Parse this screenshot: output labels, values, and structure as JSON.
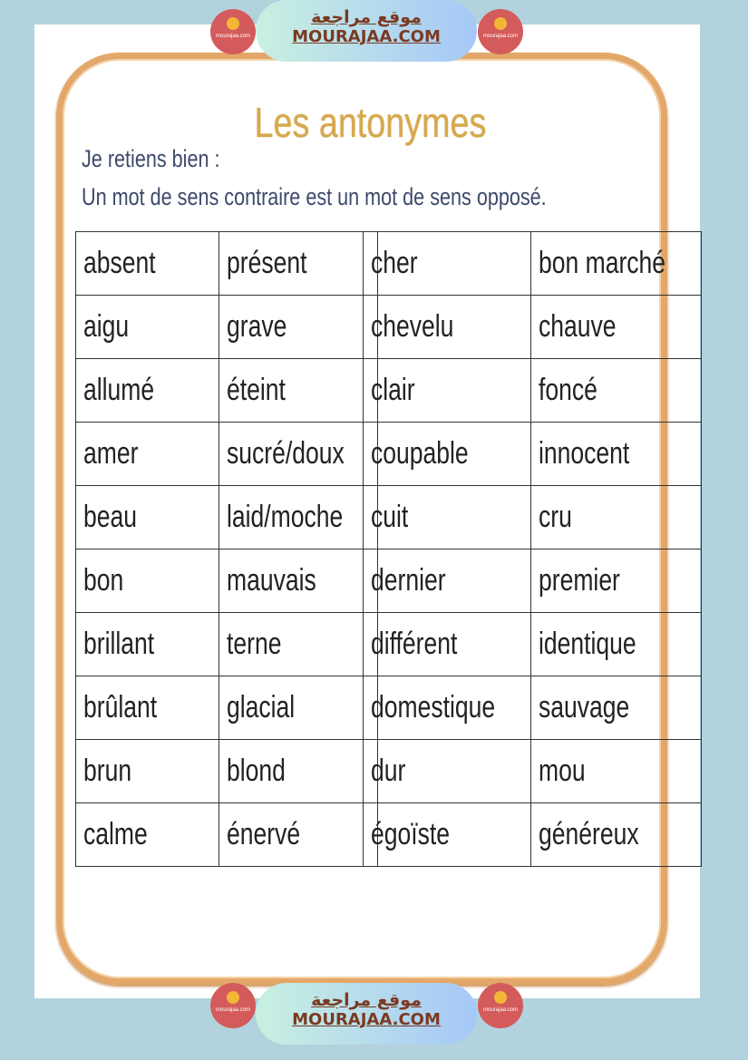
{
  "banner": {
    "arabic": "موقع مراجعة",
    "site": "MOURAJAA.COM",
    "logo_text": "mourajaa.com"
  },
  "title": "Les antonymes",
  "subtitle1": "Je retiens bien :",
  "subtitle2": "Un mot de sens contraire est un mot de sens opposé.",
  "left_table": [
    [
      "absent",
      "présent"
    ],
    [
      "aigu",
      "grave"
    ],
    [
      "allumé",
      "éteint"
    ],
    [
      "amer",
      "sucré/doux"
    ],
    [
      "beau",
      "laid/moche"
    ],
    [
      "bon",
      "mauvais"
    ],
    [
      "brillant",
      "terne"
    ],
    [
      "brûlant",
      "glacial"
    ],
    [
      "brun",
      "blond"
    ],
    [
      "calme",
      "énervé"
    ]
  ],
  "right_table": [
    [
      "cher",
      "bon marché"
    ],
    [
      "chevelu",
      "chauve"
    ],
    [
      "clair",
      "foncé"
    ],
    [
      "coupable",
      "innocent"
    ],
    [
      "cuit",
      "cru"
    ],
    [
      "dernier",
      "premier"
    ],
    [
      "différent",
      "identique"
    ],
    [
      "domestique",
      "sauvage"
    ],
    [
      "dur",
      "mou"
    ],
    [
      "égoïste",
      "généreux"
    ]
  ],
  "colors": {
    "title": "#d7a94c",
    "frame": "#e3a869",
    "background": "#b2d2de"
  }
}
